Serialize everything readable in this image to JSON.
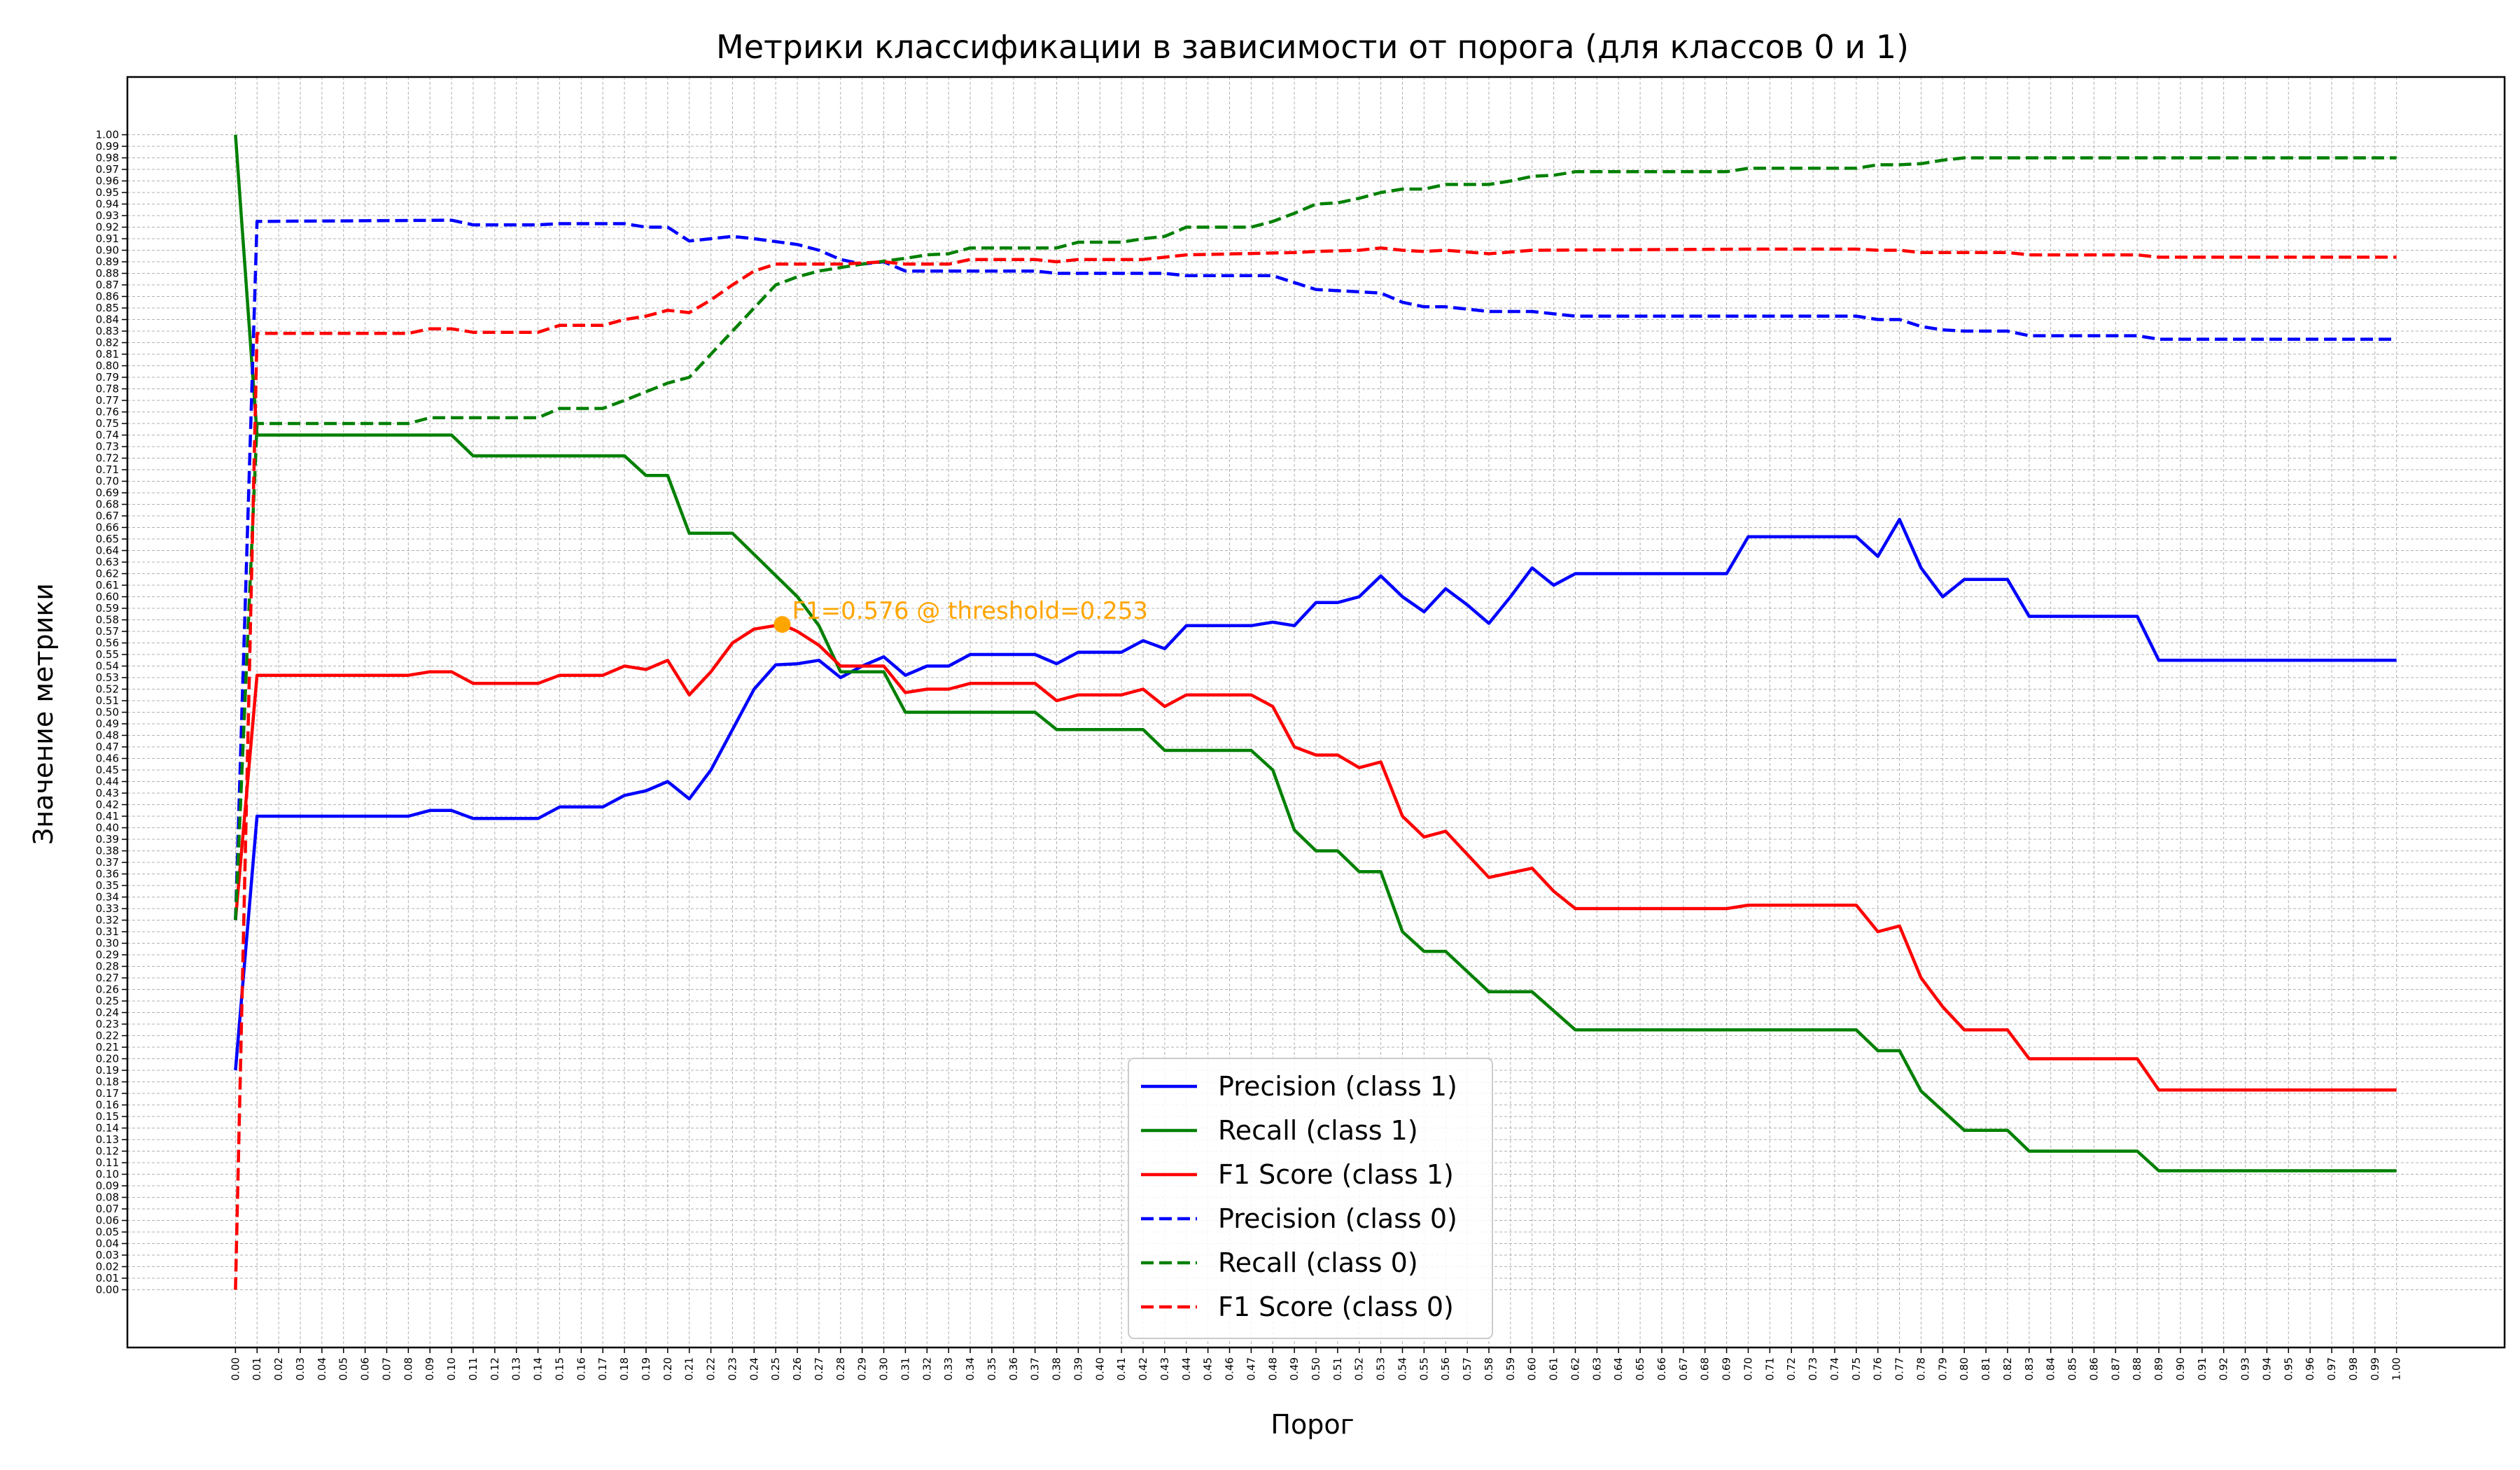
{
  "chart_data": {
    "type": "line",
    "title": "Метрики классификации в зависимости от порога (для классов 0 и 1)",
    "xlabel": "Порог",
    "ylabel": "Значение метрики",
    "xlim": [
      -0.05,
      1.05
    ],
    "ylim": [
      -0.05,
      1.05
    ],
    "xticks_step": 0.01,
    "yticks_step": 0.01,
    "grid": true,
    "legend_position": "lower-center",
    "annotation": {
      "text": "F1=0.576 @ threshold=0.253",
      "x": 0.253,
      "y": 0.576,
      "color": "#ffa500"
    },
    "series": [
      {
        "name": "Precision (class 1)",
        "color": "#0000ff",
        "dash": false,
        "points": [
          [
            0,
            0.19
          ],
          [
            0.01,
            0.41
          ],
          [
            0.08,
            0.41
          ],
          [
            0.09,
            0.415
          ],
          [
            0.1,
            0.415
          ],
          [
            0.11,
            0.408
          ],
          [
            0.14,
            0.408
          ],
          [
            0.15,
            0.418
          ],
          [
            0.17,
            0.418
          ],
          [
            0.18,
            0.428
          ],
          [
            0.19,
            0.432
          ],
          [
            0.2,
            0.44
          ],
          [
            0.21,
            0.425
          ],
          [
            0.22,
            0.45
          ],
          [
            0.23,
            0.485
          ],
          [
            0.24,
            0.52
          ],
          [
            0.25,
            0.541
          ],
          [
            0.26,
            0.542
          ],
          [
            0.27,
            0.545
          ],
          [
            0.28,
            0.53
          ],
          [
            0.29,
            0.54
          ],
          [
            0.3,
            0.548
          ],
          [
            0.31,
            0.532
          ],
          [
            0.32,
            0.54
          ],
          [
            0.33,
            0.54
          ],
          [
            0.34,
            0.55
          ],
          [
            0.37,
            0.55
          ],
          [
            0.38,
            0.542
          ],
          [
            0.39,
            0.552
          ],
          [
            0.41,
            0.552
          ],
          [
            0.42,
            0.562
          ],
          [
            0.43,
            0.555
          ],
          [
            0.44,
            0.575
          ],
          [
            0.47,
            0.575
          ],
          [
            0.48,
            0.578
          ],
          [
            0.49,
            0.575
          ],
          [
            0.5,
            0.595
          ],
          [
            0.51,
            0.595
          ],
          [
            0.52,
            0.6
          ],
          [
            0.53,
            0.618
          ],
          [
            0.54,
            0.6
          ],
          [
            0.55,
            0.587
          ],
          [
            0.56,
            0.607
          ],
          [
            0.57,
            0.593
          ],
          [
            0.58,
            0.577
          ],
          [
            0.59,
            0.6
          ],
          [
            0.6,
            0.625
          ],
          [
            0.61,
            0.61
          ],
          [
            0.62,
            0.62
          ],
          [
            0.69,
            0.62
          ],
          [
            0.7,
            0.652
          ],
          [
            0.75,
            0.652
          ],
          [
            0.76,
            0.635
          ],
          [
            0.77,
            0.667
          ],
          [
            0.78,
            0.625
          ],
          [
            0.79,
            0.6
          ],
          [
            0.8,
            0.615
          ],
          [
            0.82,
            0.615
          ],
          [
            0.83,
            0.583
          ],
          [
            0.88,
            0.583
          ],
          [
            0.89,
            0.545
          ],
          [
            1.0,
            0.545
          ]
        ]
      },
      {
        "name": "Recall (class 1)",
        "color": "#008000",
        "dash": false,
        "points": [
          [
            0,
            1.0
          ],
          [
            0.01,
            0.74
          ],
          [
            0.1,
            0.74
          ],
          [
            0.11,
            0.722
          ],
          [
            0.18,
            0.722
          ],
          [
            0.19,
            0.705
          ],
          [
            0.2,
            0.705
          ],
          [
            0.21,
            0.655
          ],
          [
            0.23,
            0.655
          ],
          [
            0.26,
            0.6
          ],
          [
            0.27,
            0.575
          ],
          [
            0.28,
            0.535
          ],
          [
            0.3,
            0.535
          ],
          [
            0.31,
            0.5
          ],
          [
            0.37,
            0.5
          ],
          [
            0.38,
            0.485
          ],
          [
            0.42,
            0.485
          ],
          [
            0.43,
            0.467
          ],
          [
            0.47,
            0.467
          ],
          [
            0.48,
            0.45
          ],
          [
            0.49,
            0.398
          ],
          [
            0.5,
            0.38
          ],
          [
            0.51,
            0.38
          ],
          [
            0.52,
            0.362
          ],
          [
            0.53,
            0.362
          ],
          [
            0.54,
            0.31
          ],
          [
            0.55,
            0.293
          ],
          [
            0.56,
            0.293
          ],
          [
            0.58,
            0.258
          ],
          [
            0.6,
            0.258
          ],
          [
            0.62,
            0.225
          ],
          [
            0.75,
            0.225
          ],
          [
            0.76,
            0.207
          ],
          [
            0.77,
            0.207
          ],
          [
            0.78,
            0.172
          ],
          [
            0.8,
            0.138
          ],
          [
            0.82,
            0.138
          ],
          [
            0.83,
            0.12
          ],
          [
            0.88,
            0.12
          ],
          [
            0.89,
            0.103
          ],
          [
            1.0,
            0.103
          ]
        ]
      },
      {
        "name": "F1 Score (class 1)",
        "color": "#ff0000",
        "dash": false,
        "points": [
          [
            0,
            0.32
          ],
          [
            0.01,
            0.532
          ],
          [
            0.08,
            0.532
          ],
          [
            0.09,
            0.535
          ],
          [
            0.1,
            0.535
          ],
          [
            0.11,
            0.525
          ],
          [
            0.14,
            0.525
          ],
          [
            0.15,
            0.532
          ],
          [
            0.17,
            0.532
          ],
          [
            0.18,
            0.54
          ],
          [
            0.19,
            0.537
          ],
          [
            0.2,
            0.545
          ],
          [
            0.21,
            0.515
          ],
          [
            0.22,
            0.535
          ],
          [
            0.23,
            0.56
          ],
          [
            0.24,
            0.572
          ],
          [
            0.253,
            0.576
          ],
          [
            0.26,
            0.57
          ],
          [
            0.27,
            0.558
          ],
          [
            0.28,
            0.54
          ],
          [
            0.3,
            0.54
          ],
          [
            0.31,
            0.517
          ],
          [
            0.32,
            0.52
          ],
          [
            0.33,
            0.52
          ],
          [
            0.34,
            0.525
          ],
          [
            0.37,
            0.525
          ],
          [
            0.38,
            0.51
          ],
          [
            0.39,
            0.515
          ],
          [
            0.41,
            0.515
          ],
          [
            0.42,
            0.52
          ],
          [
            0.43,
            0.505
          ],
          [
            0.44,
            0.515
          ],
          [
            0.47,
            0.515
          ],
          [
            0.48,
            0.505
          ],
          [
            0.49,
            0.47
          ],
          [
            0.5,
            0.463
          ],
          [
            0.51,
            0.463
          ],
          [
            0.52,
            0.452
          ],
          [
            0.53,
            0.457
          ],
          [
            0.54,
            0.41
          ],
          [
            0.55,
            0.392
          ],
          [
            0.56,
            0.397
          ],
          [
            0.57,
            0.377
          ],
          [
            0.58,
            0.357
          ],
          [
            0.6,
            0.365
          ],
          [
            0.61,
            0.345
          ],
          [
            0.62,
            0.33
          ],
          [
            0.69,
            0.33
          ],
          [
            0.7,
            0.333
          ],
          [
            0.75,
            0.333
          ],
          [
            0.76,
            0.31
          ],
          [
            0.77,
            0.315
          ],
          [
            0.78,
            0.27
          ],
          [
            0.79,
            0.245
          ],
          [
            0.8,
            0.225
          ],
          [
            0.82,
            0.225
          ],
          [
            0.83,
            0.2
          ],
          [
            0.88,
            0.2
          ],
          [
            0.89,
            0.173
          ],
          [
            1.0,
            0.173
          ]
        ]
      },
      {
        "name": "Precision (class 0)",
        "color": "#0000ff",
        "dash": true,
        "points": [
          [
            0,
            0.32
          ],
          [
            0.01,
            0.925
          ],
          [
            0.1,
            0.926
          ],
          [
            0.11,
            0.922
          ],
          [
            0.14,
            0.922
          ],
          [
            0.15,
            0.923
          ],
          [
            0.18,
            0.923
          ],
          [
            0.19,
            0.92
          ],
          [
            0.2,
            0.92
          ],
          [
            0.21,
            0.908
          ],
          [
            0.22,
            0.91
          ],
          [
            0.23,
            0.912
          ],
          [
            0.24,
            0.91
          ],
          [
            0.26,
            0.905
          ],
          [
            0.27,
            0.9
          ],
          [
            0.28,
            0.892
          ],
          [
            0.29,
            0.888
          ],
          [
            0.3,
            0.89
          ],
          [
            0.31,
            0.882
          ],
          [
            0.37,
            0.882
          ],
          [
            0.38,
            0.88
          ],
          [
            0.43,
            0.88
          ],
          [
            0.44,
            0.878
          ],
          [
            0.48,
            0.878
          ],
          [
            0.49,
            0.872
          ],
          [
            0.5,
            0.866
          ],
          [
            0.52,
            0.864
          ],
          [
            0.53,
            0.863
          ],
          [
            0.54,
            0.855
          ],
          [
            0.55,
            0.851
          ],
          [
            0.56,
            0.851
          ],
          [
            0.58,
            0.847
          ],
          [
            0.6,
            0.847
          ],
          [
            0.62,
            0.843
          ],
          [
            0.75,
            0.843
          ],
          [
            0.76,
            0.84
          ],
          [
            0.77,
            0.84
          ],
          [
            0.78,
            0.834
          ],
          [
            0.79,
            0.831
          ],
          [
            0.8,
            0.83
          ],
          [
            0.82,
            0.83
          ],
          [
            0.83,
            0.826
          ],
          [
            0.88,
            0.826
          ],
          [
            0.89,
            0.823
          ],
          [
            1.0,
            0.823
          ]
        ]
      },
      {
        "name": "Recall (class 0)",
        "color": "#008000",
        "dash": true,
        "points": [
          [
            0,
            0.32
          ],
          [
            0.01,
            0.75
          ],
          [
            0.08,
            0.75
          ],
          [
            0.09,
            0.755
          ],
          [
            0.14,
            0.755
          ],
          [
            0.15,
            0.763
          ],
          [
            0.17,
            0.763
          ],
          [
            0.18,
            0.77
          ],
          [
            0.2,
            0.785
          ],
          [
            0.21,
            0.79
          ],
          [
            0.22,
            0.81
          ],
          [
            0.24,
            0.85
          ],
          [
            0.25,
            0.87
          ],
          [
            0.26,
            0.877
          ],
          [
            0.27,
            0.882
          ],
          [
            0.29,
            0.888
          ],
          [
            0.31,
            0.893
          ],
          [
            0.32,
            0.896
          ],
          [
            0.33,
            0.897
          ],
          [
            0.34,
            0.902
          ],
          [
            0.38,
            0.902
          ],
          [
            0.39,
            0.907
          ],
          [
            0.41,
            0.907
          ],
          [
            0.42,
            0.91
          ],
          [
            0.43,
            0.912
          ],
          [
            0.44,
            0.92
          ],
          [
            0.47,
            0.92
          ],
          [
            0.48,
            0.925
          ],
          [
            0.49,
            0.932
          ],
          [
            0.5,
            0.94
          ],
          [
            0.51,
            0.941
          ],
          [
            0.52,
            0.945
          ],
          [
            0.53,
            0.95
          ],
          [
            0.54,
            0.953
          ],
          [
            0.55,
            0.953
          ],
          [
            0.56,
            0.957
          ],
          [
            0.58,
            0.957
          ],
          [
            0.59,
            0.96
          ],
          [
            0.6,
            0.964
          ],
          [
            0.61,
            0.965
          ],
          [
            0.62,
            0.968
          ],
          [
            0.69,
            0.968
          ],
          [
            0.7,
            0.971
          ],
          [
            0.75,
            0.971
          ],
          [
            0.76,
            0.974
          ],
          [
            0.77,
            0.974
          ],
          [
            0.78,
            0.975
          ],
          [
            0.79,
            0.978
          ],
          [
            0.8,
            0.98
          ],
          [
            1.0,
            0.98
          ]
        ]
      },
      {
        "name": "F1 Score (class 0)",
        "color": "#ff0000",
        "dash": true,
        "points": [
          [
            0,
            0.0
          ],
          [
            0.01,
            0.828
          ],
          [
            0.08,
            0.828
          ],
          [
            0.09,
            0.832
          ],
          [
            0.1,
            0.832
          ],
          [
            0.11,
            0.829
          ],
          [
            0.14,
            0.829
          ],
          [
            0.15,
            0.835
          ],
          [
            0.17,
            0.835
          ],
          [
            0.18,
            0.84
          ],
          [
            0.19,
            0.843
          ],
          [
            0.2,
            0.848
          ],
          [
            0.21,
            0.846
          ],
          [
            0.22,
            0.857
          ],
          [
            0.23,
            0.87
          ],
          [
            0.24,
            0.882
          ],
          [
            0.25,
            0.888
          ],
          [
            0.28,
            0.888
          ],
          [
            0.29,
            0.889
          ],
          [
            0.3,
            0.89
          ],
          [
            0.31,
            0.888
          ],
          [
            0.33,
            0.888
          ],
          [
            0.34,
            0.892
          ],
          [
            0.37,
            0.892
          ],
          [
            0.38,
            0.89
          ],
          [
            0.39,
            0.892
          ],
          [
            0.42,
            0.892
          ],
          [
            0.43,
            0.894
          ],
          [
            0.44,
            0.896
          ],
          [
            0.49,
            0.898
          ],
          [
            0.5,
            0.899
          ],
          [
            0.52,
            0.9
          ],
          [
            0.53,
            0.902
          ],
          [
            0.54,
            0.9
          ],
          [
            0.55,
            0.899
          ],
          [
            0.56,
            0.9
          ],
          [
            0.58,
            0.897
          ],
          [
            0.6,
            0.9
          ],
          [
            0.7,
            0.901
          ],
          [
            0.75,
            0.901
          ],
          [
            0.76,
            0.9
          ],
          [
            0.77,
            0.9
          ],
          [
            0.78,
            0.898
          ],
          [
            0.82,
            0.898
          ],
          [
            0.83,
            0.896
          ],
          [
            0.88,
            0.896
          ],
          [
            0.89,
            0.894
          ],
          [
            1.0,
            0.894
          ]
        ]
      }
    ]
  }
}
